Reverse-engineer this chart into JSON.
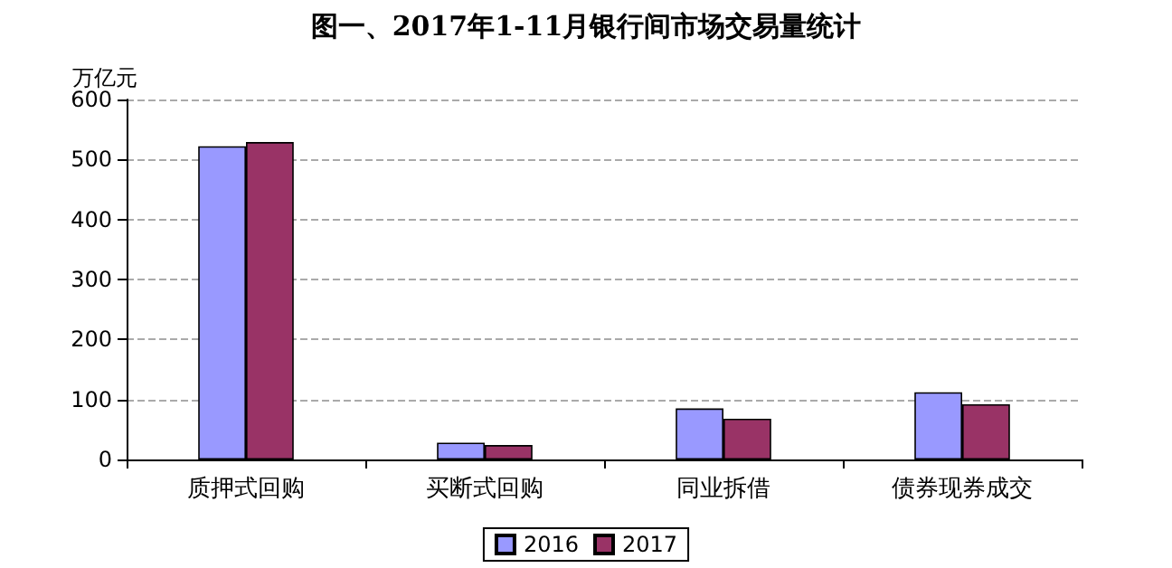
{
  "chart_data": {
    "type": "bar",
    "title": "图一、2017年1-11月银行间市场交易量统计",
    "ylabel": "万亿元",
    "categories": [
      "质押式回购",
      "买断式回购",
      "同业拆借",
      "债券现券成交"
    ],
    "series": [
      {
        "name": "2016",
        "color": "#9999ff",
        "values": [
          522,
          28,
          85,
          112
        ]
      },
      {
        "name": "2017",
        "color": "#993366",
        "values": [
          529,
          24,
          68,
          92
        ]
      }
    ],
    "ylim": [
      0,
      600
    ],
    "yticks": [
      0,
      100,
      200,
      300,
      400,
      500,
      600
    ],
    "grid": "y",
    "legend": "bottom"
  }
}
